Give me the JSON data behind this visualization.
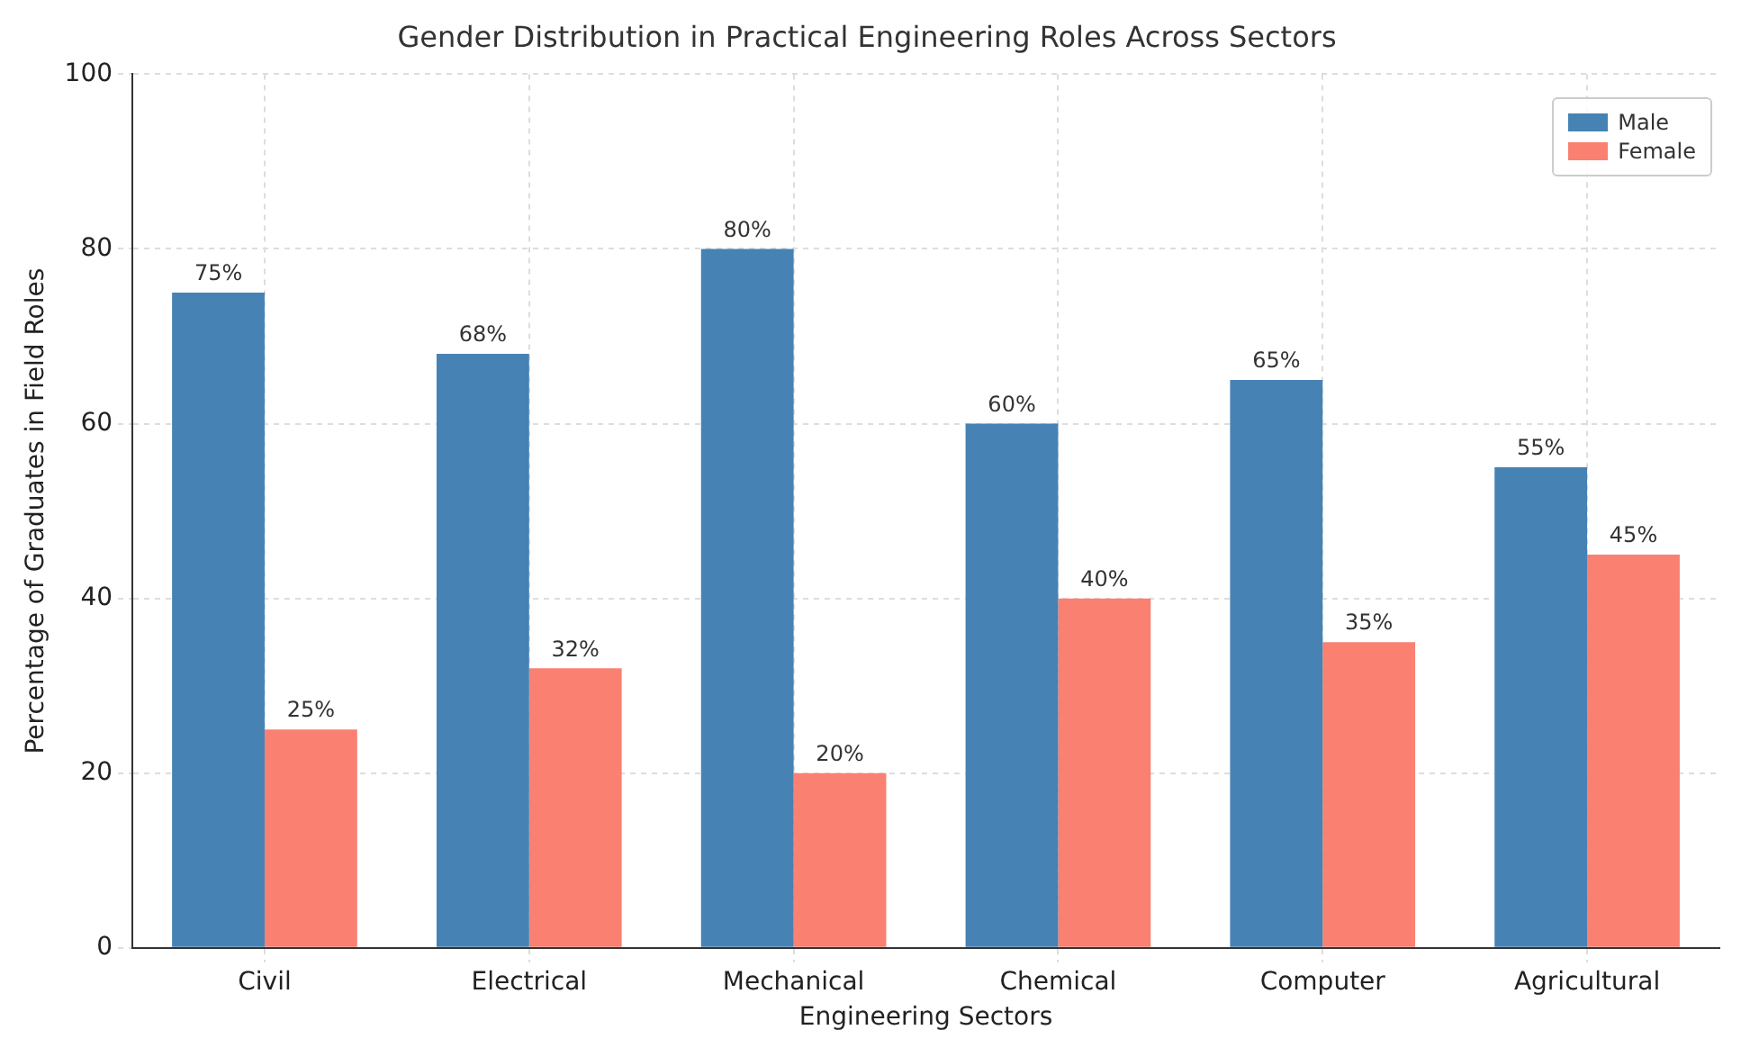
{
  "chart_data": {
    "type": "bar",
    "title": "Gender Distribution in Practical Engineering Roles Across Sectors",
    "xlabel": "Engineering Sectors",
    "ylabel": "Percentage of Graduates in Field Roles",
    "categories": [
      "Civil",
      "Electrical",
      "Mechanical",
      "Chemical",
      "Computer",
      "Agricultural"
    ],
    "series": [
      {
        "name": "Male",
        "color": "#4682b4",
        "values": [
          75,
          68,
          80,
          60,
          65,
          55
        ],
        "value_labels": [
          "75%",
          "68%",
          "80%",
          "60%",
          "65%",
          "55%"
        ]
      },
      {
        "name": "Female",
        "color": "#fa8072",
        "values": [
          25,
          32,
          20,
          40,
          35,
          45
        ],
        "value_labels": [
          "25%",
          "32%",
          "20%",
          "40%",
          "35%",
          "45%"
        ]
      }
    ],
    "ylim": [
      0,
      100
    ],
    "yticks": [
      0,
      20,
      40,
      60,
      80,
      100
    ],
    "grid": true,
    "legend": "top right"
  }
}
